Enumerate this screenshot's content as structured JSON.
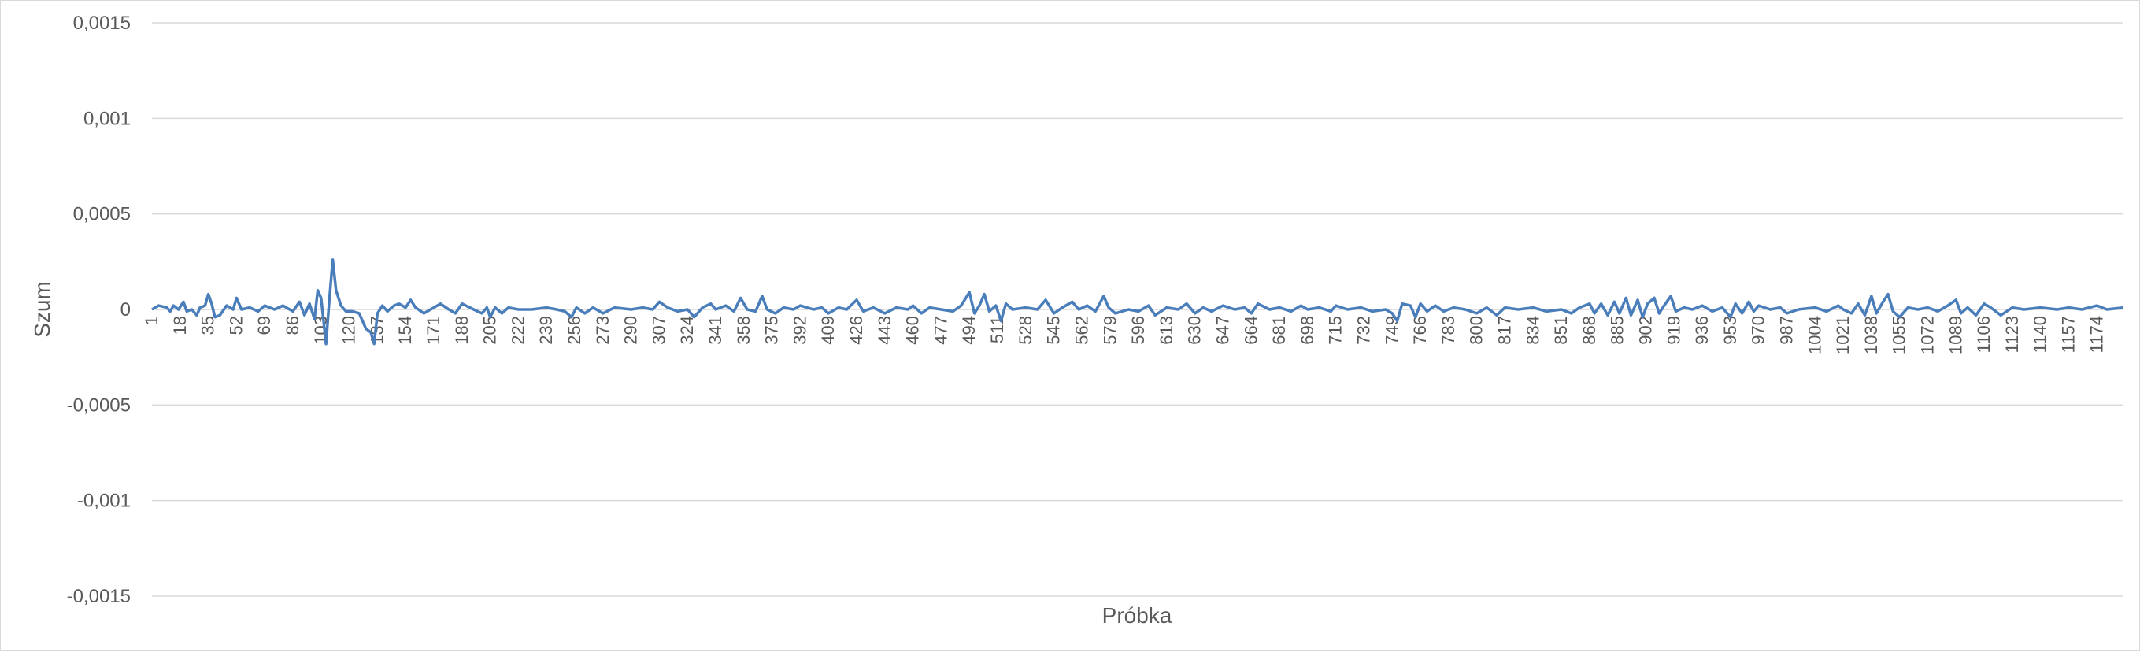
{
  "chart_data": {
    "type": "line",
    "title": "",
    "xlabel": "Próbka",
    "ylabel": "Szum",
    "ylim": [
      -0.0015,
      0.0015
    ],
    "xlim": [
      1,
      1190
    ],
    "grid": true,
    "legend": "none",
    "series_color": "#4a7ebb",
    "y_tick_labels": [
      "0,0015",
      "0,001",
      "0,0005",
      "0",
      "-0,0005",
      "-0,001",
      "-0,0015"
    ],
    "y_tick_values": [
      0.0015,
      0.001,
      0.0005,
      0,
      -0.0005,
      -0.001,
      -0.0015
    ],
    "x_tick_labels": [
      "1",
      "18",
      "35",
      "52",
      "69",
      "86",
      "103",
      "120",
      "137",
      "154",
      "171",
      "188",
      "205",
      "222",
      "239",
      "256",
      "273",
      "290",
      "307",
      "324",
      "341",
      "358",
      "375",
      "392",
      "409",
      "426",
      "443",
      "460",
      "477",
      "494",
      "511",
      "528",
      "545",
      "562",
      "579",
      "596",
      "613",
      "630",
      "647",
      "664",
      "681",
      "698",
      "715",
      "732",
      "749",
      "766",
      "783",
      "800",
      "817",
      "834",
      "851",
      "868",
      "885",
      "902",
      "919",
      "936",
      "953",
      "970",
      "987",
      "1004",
      "1021",
      "1038",
      "1055",
      "1072",
      "1089",
      "1106",
      "1123",
      "1140",
      "1157",
      "1174"
    ],
    "series": [
      {
        "name": "",
        "points": [
          [
            1,
            0
          ],
          [
            5,
            2e-05
          ],
          [
            10,
            1e-05
          ],
          [
            12,
            -1e-05
          ],
          [
            14,
            2e-05
          ],
          [
            17,
            0
          ],
          [
            20,
            4e-05
          ],
          [
            22,
            -1e-05
          ],
          [
            25,
            0
          ],
          [
            28,
            -3e-05
          ],
          [
            30,
            1e-05
          ],
          [
            33,
            2e-05
          ],
          [
            35,
            8e-05
          ],
          [
            37,
            3e-05
          ],
          [
            39,
            -4e-05
          ],
          [
            42,
            -3e-05
          ],
          [
            46,
            2e-05
          ],
          [
            50,
            0
          ],
          [
            52,
            6e-05
          ],
          [
            55,
            0
          ],
          [
            60,
            1e-05
          ],
          [
            65,
            -1e-05
          ],
          [
            69,
            2e-05
          ],
          [
            75,
            0
          ],
          [
            80,
            2e-05
          ],
          [
            86,
            -1e-05
          ],
          [
            90,
            4e-05
          ],
          [
            93,
            -3e-05
          ],
          [
            96,
            3e-05
          ],
          [
            99,
            -5e-05
          ],
          [
            101,
            0.0001
          ],
          [
            103,
            6e-05
          ],
          [
            105,
            -0.0001
          ],
          [
            106,
            -0.00018
          ],
          [
            108,
            5e-05
          ],
          [
            110,
            0.00026
          ],
          [
            112,
            0.0001
          ],
          [
            115,
            2e-05
          ],
          [
            118,
            -1e-05
          ],
          [
            122,
            -1e-05
          ],
          [
            126,
            -2e-05
          ],
          [
            130,
            -0.0001
          ],
          [
            133,
            -0.00012
          ],
          [
            135,
            -0.00018
          ],
          [
            137,
            -2e-05
          ],
          [
            140,
            2e-05
          ],
          [
            143,
            -1e-05
          ],
          [
            147,
            2e-05
          ],
          [
            150,
            3e-05
          ],
          [
            154,
            1e-05
          ],
          [
            157,
            5e-05
          ],
          [
            160,
            1e-05
          ],
          [
            165,
            -2e-05
          ],
          [
            171,
            1e-05
          ],
          [
            175,
            3e-05
          ],
          [
            180,
            0
          ],
          [
            184,
            -2e-05
          ],
          [
            188,
            3e-05
          ],
          [
            195,
            0
          ],
          [
            200,
            -2e-05
          ],
          [
            203,
            1e-05
          ],
          [
            205,
            -4e-05
          ],
          [
            208,
            1e-05
          ],
          [
            212,
            -2e-05
          ],
          [
            216,
            1e-05
          ],
          [
            222,
            0
          ],
          [
            230,
            0
          ],
          [
            239,
            1e-05
          ],
          [
            245,
            0
          ],
          [
            250,
            -1e-05
          ],
          [
            254,
            -4e-05
          ],
          [
            257,
            1e-05
          ],
          [
            262,
            -2e-05
          ],
          [
            267,
            1e-05
          ],
          [
            273,
            -2e-05
          ],
          [
            280,
            1e-05
          ],
          [
            290,
            0
          ],
          [
            297,
            1e-05
          ],
          [
            303,
            0
          ],
          [
            307,
            4e-05
          ],
          [
            312,
            1e-05
          ],
          [
            318,
            -1e-05
          ],
          [
            324,
            0
          ],
          [
            328,
            -4e-05
          ],
          [
            333,
            1e-05
          ],
          [
            338,
            3e-05
          ],
          [
            341,
            0
          ],
          [
            347,
            2e-05
          ],
          [
            352,
            -1e-05
          ],
          [
            356,
            6e-05
          ],
          [
            360,
            0
          ],
          [
            365,
            -1e-05
          ],
          [
            369,
            7e-05
          ],
          [
            372,
            0
          ],
          [
            377,
            -2e-05
          ],
          [
            382,
            1e-05
          ],
          [
            388,
            0
          ],
          [
            392,
            2e-05
          ],
          [
            400,
            0
          ],
          [
            405,
            1e-05
          ],
          [
            409,
            -2e-05
          ],
          [
            415,
            1e-05
          ],
          [
            420,
            0
          ],
          [
            426,
            5e-05
          ],
          [
            430,
            -1e-05
          ],
          [
            436,
            1e-05
          ],
          [
            443,
            -2e-05
          ],
          [
            450,
            1e-05
          ],
          [
            457,
            0
          ],
          [
            460,
            2e-05
          ],
          [
            465,
            -2e-05
          ],
          [
            470,
            1e-05
          ],
          [
            477,
            0
          ],
          [
            484,
            -1e-05
          ],
          [
            489,
            2e-05
          ],
          [
            494,
            9e-05
          ],
          [
            497,
            -2e-05
          ],
          [
            500,
            2e-05
          ],
          [
            503,
            8e-05
          ],
          [
            506,
            -1e-05
          ],
          [
            510,
            2e-05
          ],
          [
            513,
            -6e-05
          ],
          [
            516,
            3e-05
          ],
          [
            520,
            0
          ],
          [
            528,
            1e-05
          ],
          [
            535,
            0
          ],
          [
            540,
            5e-05
          ],
          [
            545,
            -2e-05
          ],
          [
            550,
            1e-05
          ],
          [
            556,
            4e-05
          ],
          [
            560,
            0
          ],
          [
            565,
            2e-05
          ],
          [
            570,
            -1e-05
          ],
          [
            575,
            7e-05
          ],
          [
            578,
            1e-05
          ],
          [
            582,
            -2e-05
          ],
          [
            590,
            0
          ],
          [
            596,
            -1e-05
          ],
          [
            602,
            2e-05
          ],
          [
            606,
            -3e-05
          ],
          [
            613,
            1e-05
          ],
          [
            620,
            0
          ],
          [
            625,
            3e-05
          ],
          [
            630,
            -2e-05
          ],
          [
            635,
            1e-05
          ],
          [
            640,
            -1e-05
          ],
          [
            647,
            2e-05
          ],
          [
            654,
            0
          ],
          [
            660,
            1e-05
          ],
          [
            664,
            -2e-05
          ],
          [
            668,
            3e-05
          ],
          [
            675,
            0
          ],
          [
            681,
            1e-05
          ],
          [
            688,
            -1e-05
          ],
          [
            694,
            2e-05
          ],
          [
            698,
            0
          ],
          [
            705,
            1e-05
          ],
          [
            712,
            -1e-05
          ],
          [
            715,
            2e-05
          ],
          [
            722,
            0
          ],
          [
            730,
            1e-05
          ],
          [
            737,
            -1e-05
          ],
          [
            745,
            0
          ],
          [
            749,
            -2e-05
          ],
          [
            752,
            -6e-05
          ],
          [
            755,
            3e-05
          ],
          [
            760,
            2e-05
          ],
          [
            763,
            -4e-05
          ],
          [
            766,
            3e-05
          ],
          [
            770,
            -1e-05
          ],
          [
            775,
            2e-05
          ],
          [
            780,
            -1e-05
          ],
          [
            786,
            1e-05
          ],
          [
            793,
            0
          ],
          [
            800,
            -2e-05
          ],
          [
            806,
            1e-05
          ],
          [
            812,
            -3e-05
          ],
          [
            817,
            1e-05
          ],
          [
            825,
            0
          ],
          [
            834,
            1e-05
          ],
          [
            842,
            -1e-05
          ],
          [
            851,
            0
          ],
          [
            857,
            -2e-05
          ],
          [
            862,
            1e-05
          ],
          [
            868,
            3e-05
          ],
          [
            871,
            -2e-05
          ],
          [
            875,
            3e-05
          ],
          [
            879,
            -3e-05
          ],
          [
            883,
            4e-05
          ],
          [
            886,
            -2e-05
          ],
          [
            890,
            6e-05
          ],
          [
            893,
            -3e-05
          ],
          [
            897,
            5e-05
          ],
          [
            900,
            -4e-05
          ],
          [
            903,
            3e-05
          ],
          [
            907,
            6e-05
          ],
          [
            910,
            -2e-05
          ],
          [
            913,
            2e-05
          ],
          [
            917,
            7e-05
          ],
          [
            920,
            -1e-05
          ],
          [
            925,
            1e-05
          ],
          [
            930,
            0
          ],
          [
            936,
            2e-05
          ],
          [
            942,
            -1e-05
          ],
          [
            948,
            1e-05
          ],
          [
            953,
            -4e-05
          ],
          [
            956,
            3e-05
          ],
          [
            960,
            -2e-05
          ],
          [
            964,
            4e-05
          ],
          [
            967,
            -1e-05
          ],
          [
            970,
            2e-05
          ],
          [
            977,
            0
          ],
          [
            983,
            1e-05
          ],
          [
            987,
            -2e-05
          ],
          [
            994,
            0
          ],
          [
            1004,
            1e-05
          ],
          [
            1011,
            -1e-05
          ],
          [
            1018,
            2e-05
          ],
          [
            1021,
            0
          ],
          [
            1026,
            -2e-05
          ],
          [
            1030,
            3e-05
          ],
          [
            1034,
            -3e-05
          ],
          [
            1038,
            7e-05
          ],
          [
            1041,
            -2e-05
          ],
          [
            1045,
            4e-05
          ],
          [
            1048,
            8e-05
          ],
          [
            1051,
            -1e-05
          ],
          [
            1055,
            -4e-05
          ],
          [
            1060,
            1e-05
          ],
          [
            1066,
            0
          ],
          [
            1072,
            1e-05
          ],
          [
            1078,
            -1e-05
          ],
          [
            1084,
            2e-05
          ],
          [
            1089,
            5e-05
          ],
          [
            1092,
            -2e-05
          ],
          [
            1096,
            1e-05
          ],
          [
            1101,
            -3e-05
          ],
          [
            1106,
            3e-05
          ],
          [
            1110,
            1e-05
          ],
          [
            1116,
            -3e-05
          ],
          [
            1123,
            1e-05
          ],
          [
            1130,
            0
          ],
          [
            1140,
            1e-05
          ],
          [
            1150,
            0
          ],
          [
            1157,
            1e-05
          ],
          [
            1165,
            0
          ],
          [
            1174,
            2e-05
          ],
          [
            1180,
            0
          ],
          [
            1190,
            1e-05
          ]
        ]
      }
    ]
  }
}
